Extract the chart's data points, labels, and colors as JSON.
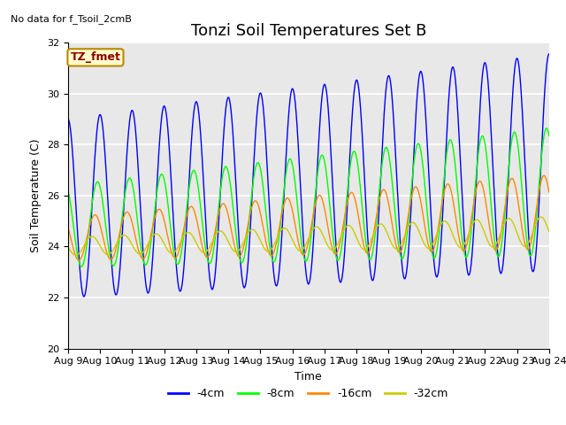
{
  "title": "Tonzi Soil Temperatures Set B",
  "no_data_label": "No data for f_Tsoil_2cmB",
  "tz_label": "TZ_fmet",
  "xlabel": "Time",
  "ylabel": "Soil Temperature (C)",
  "ylim": [
    20,
    32
  ],
  "yticks": [
    20,
    22,
    24,
    26,
    28,
    30,
    32
  ],
  "xtick_labels": [
    "Aug 9",
    "Aug 10",
    "Aug 11",
    "Aug 12",
    "Aug 13",
    "Aug 14",
    "Aug 15",
    "Aug 16",
    "Aug 17",
    "Aug 18",
    "Aug 19",
    "Aug 20",
    "Aug 21",
    "Aug 22",
    "Aug 23",
    "Aug 24"
  ],
  "colors": {
    "4cm": "#0000ff",
    "8cm": "#00ff00",
    "16cm": "#ff8800",
    "32cm": "#cccc00"
  },
  "legend_labels": [
    "-4cm",
    "-8cm",
    "-16cm",
    "-32cm"
  ],
  "background_color": "#e8e8e8",
  "title_fontsize": 13,
  "label_fontsize": 9,
  "tick_fontsize": 8
}
